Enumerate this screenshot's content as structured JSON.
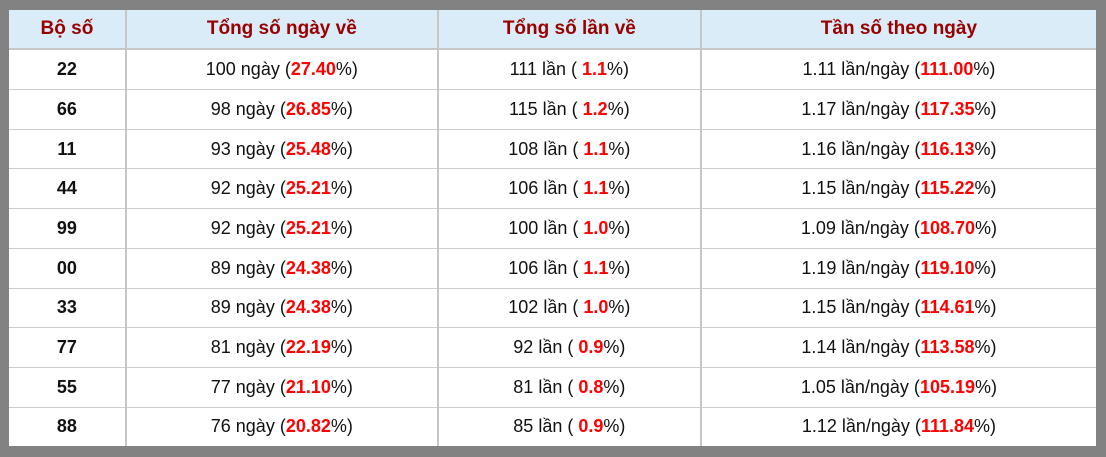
{
  "colors": {
    "frame_gray": "#828282",
    "header_bg": "#d9ecf7",
    "header_text": "#990000",
    "highlight_red": "#ff0000",
    "body_text": "#111111",
    "border_light": "#c6c6c6"
  },
  "table": {
    "columns": [
      {
        "label": "Bộ số"
      },
      {
        "label": "Tổng số ngày về"
      },
      {
        "label": "Tổng số lần về"
      },
      {
        "label": "Tần số theo ngày"
      }
    ],
    "rows": [
      {
        "pair": "22",
        "days": {
          "prefix": "100 ngày (",
          "value": "27.40",
          "suffix": "%)"
        },
        "times": {
          "prefix": "111 lần ( ",
          "value": "1.1",
          "suffix": "%)"
        },
        "freq": {
          "prefix": "1.11 lần/ngày (",
          "value": "111.00",
          "suffix": "%)"
        }
      },
      {
        "pair": "66",
        "days": {
          "prefix": "98 ngày (",
          "value": "26.85",
          "suffix": "%)"
        },
        "times": {
          "prefix": "115 lần ( ",
          "value": "1.2",
          "suffix": "%)"
        },
        "freq": {
          "prefix": "1.17 lần/ngày (",
          "value": "117.35",
          "suffix": "%)"
        }
      },
      {
        "pair": "11",
        "days": {
          "prefix": "93 ngày (",
          "value": "25.48",
          "suffix": "%)"
        },
        "times": {
          "prefix": "108 lần ( ",
          "value": "1.1",
          "suffix": "%)"
        },
        "freq": {
          "prefix": "1.16 lần/ngày (",
          "value": "116.13",
          "suffix": "%)"
        }
      },
      {
        "pair": "44",
        "days": {
          "prefix": "92 ngày (",
          "value": "25.21",
          "suffix": "%)"
        },
        "times": {
          "prefix": "106 lần ( ",
          "value": "1.1",
          "suffix": "%)"
        },
        "freq": {
          "prefix": "1.15 lần/ngày (",
          "value": "115.22",
          "suffix": "%)"
        }
      },
      {
        "pair": "99",
        "days": {
          "prefix": "92 ngày (",
          "value": "25.21",
          "suffix": "%)"
        },
        "times": {
          "prefix": "100 lần ( ",
          "value": "1.0",
          "suffix": "%)"
        },
        "freq": {
          "prefix": "1.09 lần/ngày (",
          "value": "108.70",
          "suffix": "%)"
        }
      },
      {
        "pair": "00",
        "days": {
          "prefix": "89 ngày (",
          "value": "24.38",
          "suffix": "%)"
        },
        "times": {
          "prefix": "106 lần ( ",
          "value": "1.1",
          "suffix": "%)"
        },
        "freq": {
          "prefix": "1.19 lần/ngày (",
          "value": "119.10",
          "suffix": "%)"
        }
      },
      {
        "pair": "33",
        "days": {
          "prefix": "89 ngày (",
          "value": "24.38",
          "suffix": "%)"
        },
        "times": {
          "prefix": "102 lần ( ",
          "value": "1.0",
          "suffix": "%)"
        },
        "freq": {
          "prefix": "1.15 lần/ngày (",
          "value": "114.61",
          "suffix": "%)"
        }
      },
      {
        "pair": "77",
        "days": {
          "prefix": "81 ngày (",
          "value": "22.19",
          "suffix": "%)"
        },
        "times": {
          "prefix": "92 lần ( ",
          "value": "0.9",
          "suffix": "%)"
        },
        "freq": {
          "prefix": "1.14 lần/ngày (",
          "value": "113.58",
          "suffix": "%)"
        }
      },
      {
        "pair": "55",
        "days": {
          "prefix": "77 ngày (",
          "value": "21.10",
          "suffix": "%)"
        },
        "times": {
          "prefix": "81 lần ( ",
          "value": "0.8",
          "suffix": "%)"
        },
        "freq": {
          "prefix": "1.05 lần/ngày (",
          "value": "105.19",
          "suffix": "%)"
        }
      },
      {
        "pair": "88",
        "days": {
          "prefix": "76 ngày (",
          "value": "20.82",
          "suffix": "%)"
        },
        "times": {
          "prefix": "85 lần ( ",
          "value": "0.9",
          "suffix": "%)"
        },
        "freq": {
          "prefix": "1.12 lần/ngày (",
          "value": "111.84",
          "suffix": "%)"
        }
      }
    ]
  }
}
